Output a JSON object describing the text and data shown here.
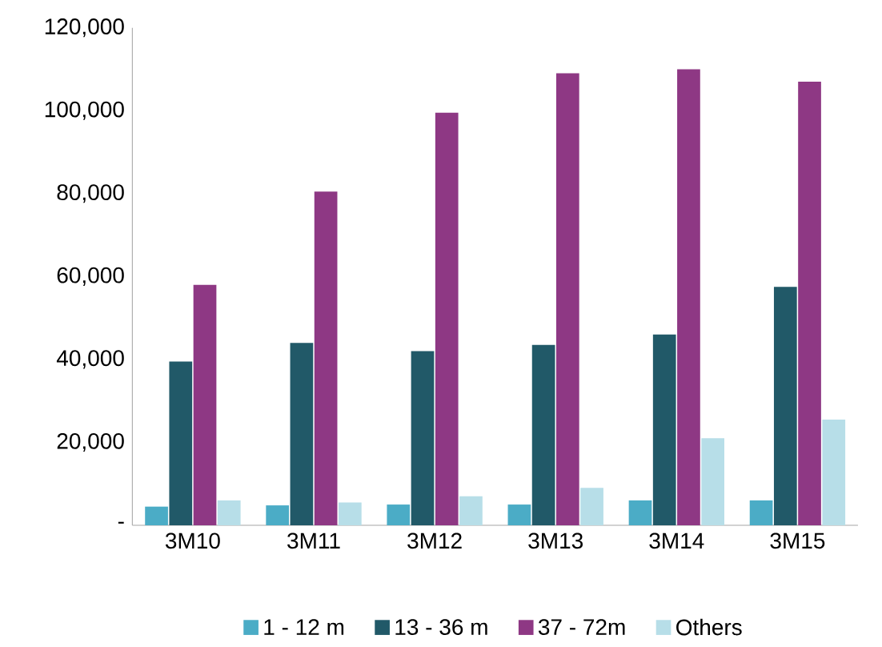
{
  "chart_data": {
    "type": "bar",
    "categories": [
      "3M10",
      "3M11",
      "3M12",
      "3M13",
      "3M14",
      "3M15"
    ],
    "series": [
      {
        "name": "1 - 12 m",
        "color": "#4bacc6",
        "values": [
          4500,
          4800,
          5000,
          5000,
          6000,
          6000
        ]
      },
      {
        "name": "13 - 36 m",
        "color": "#215968",
        "values": [
          39500,
          44000,
          42000,
          43500,
          46000,
          57500
        ]
      },
      {
        "name": "37 - 72m",
        "color": "#8e3884",
        "values": [
          58000,
          80500,
          99500,
          109000,
          110000,
          107000
        ]
      },
      {
        "name": "Others",
        "color": "#b7dee8",
        "values": [
          6000,
          5500,
          7000,
          9000,
          21000,
          25500
        ]
      }
    ],
    "ylim": [
      0,
      120000
    ],
    "yticks": [
      {
        "value": 0,
        "label": "-"
      },
      {
        "value": 20000,
        "label": "20,000"
      },
      {
        "value": 40000,
        "label": "40,000"
      },
      {
        "value": 60000,
        "label": "60,000"
      },
      {
        "value": 80000,
        "label": "80,000"
      },
      {
        "value": 100000,
        "label": "100,000"
      },
      {
        "value": 120000,
        "label": "120,000"
      }
    ],
    "grid": false,
    "legend": "bottom"
  }
}
